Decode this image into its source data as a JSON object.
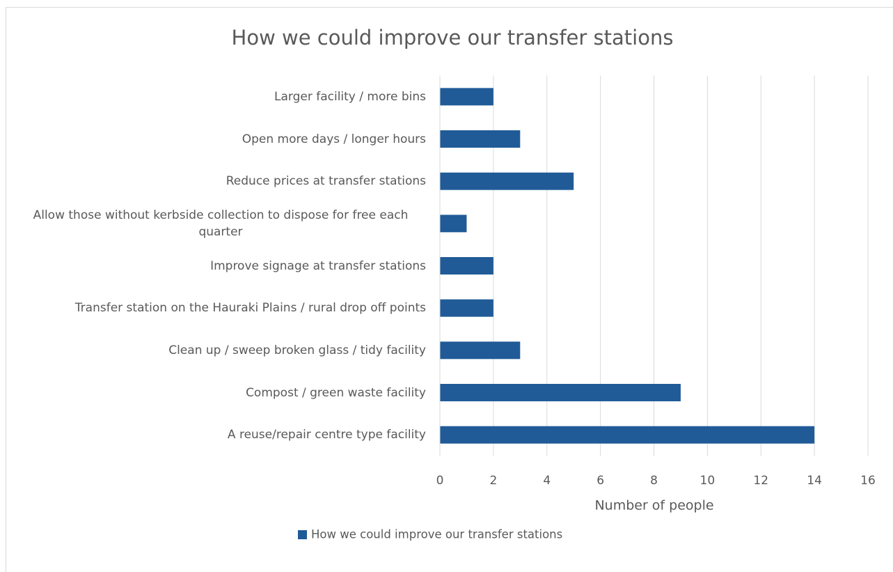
{
  "chart_data": {
    "type": "hbar",
    "title": "How we could improve our transfer stations",
    "categories": [
      "Larger facility / more bins",
      "Open more days / longer hours",
      "Reduce prices at transfer stations",
      "Allow those without kerbside collection to dispose for free each quarter",
      "Improve signage at transfer stations",
      "Transfer station on the Hauraki Plains / rural drop off points",
      "Clean up / sweep broken glass / tidy facility",
      "Compost / green waste facility",
      "A reuse/repair centre type facility"
    ],
    "series": [
      {
        "name": "How we could improve our transfer stations",
        "color": "#205b98",
        "values": [
          2,
          3,
          5,
          1,
          2,
          2,
          3,
          9,
          14
        ]
      }
    ],
    "xlim": [
      0,
      16
    ],
    "xticks": [
      0,
      2,
      4,
      6,
      8,
      10,
      12,
      14,
      16
    ],
    "x_label": "Number of people",
    "grid": true,
    "legend": "bottom"
  }
}
